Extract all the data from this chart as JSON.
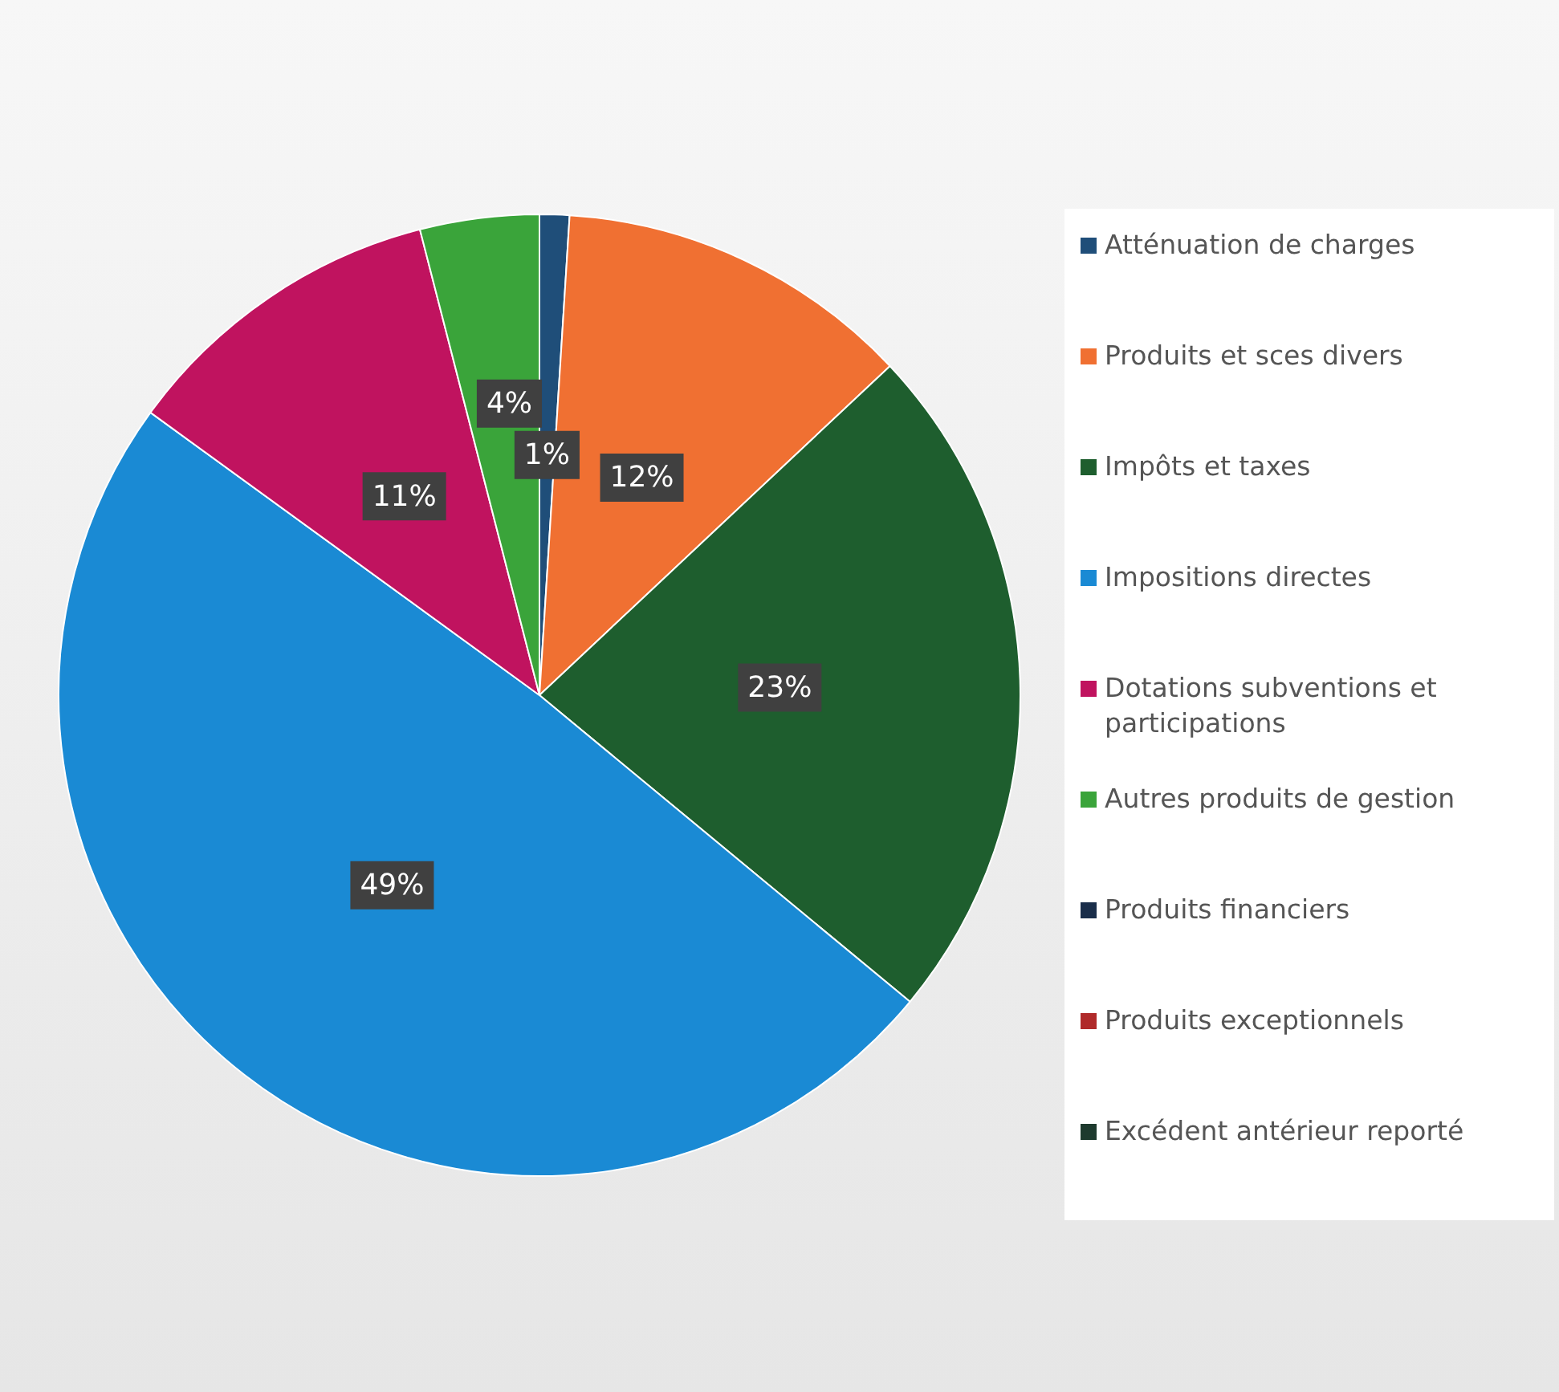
{
  "chart_data": {
    "type": "pie",
    "categories": [
      "Atténuation de charges",
      "Produits et sces divers",
      "Impôts et taxes",
      "Impositions directes",
      "Dotations subventions et participations",
      "Autres produits de gestion",
      "Produits financiers",
      "Produits exceptionnels",
      "Excédent antérieur reporté"
    ],
    "values": [
      1,
      12,
      23,
      49,
      11,
      4,
      0,
      0,
      0
    ],
    "value_labels": [
      "1%",
      "12%",
      "23%",
      "49%",
      "11%",
      "4%",
      null,
      null,
      null
    ],
    "colors": [
      "#1f4e79",
      "#f07032",
      "#1e5e2e",
      "#1a8ad4",
      "#c0135f",
      "#3aa43a",
      "#1a2e4a",
      "#b02a2a",
      "#1e3a2e"
    ],
    "legend": "right"
  }
}
